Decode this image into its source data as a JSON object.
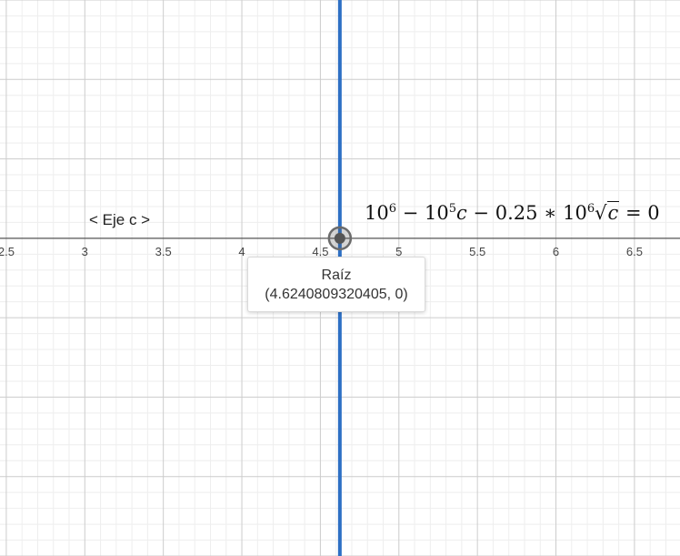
{
  "chart_data": {
    "type": "line",
    "xlim": [
      2.46,
      6.79
    ],
    "ylim": [
      -2.0,
      1.5
    ],
    "grid": true,
    "x_ticks": [
      "2.5",
      "3",
      "3.5",
      "4",
      "4.5",
      "5",
      "5.5",
      "6",
      "6.5"
    ],
    "x_tick_values": [
      2.5,
      3,
      3.5,
      4,
      4.5,
      5,
      5.5,
      6,
      6.5
    ],
    "axis_label": "< Eje c >",
    "equation": {
      "a": "10",
      "a_exp": "6",
      "b": "10",
      "b_exp": "5",
      "coef": "0.25",
      "c_exp": "6",
      "rhs": "0"
    },
    "root_line_x": 4.6240809320405,
    "root_point": {
      "x": 4.6240809320405,
      "y": 0
    },
    "line_color": "#2d6fc4",
    "point_color": "#555555"
  },
  "tooltip": {
    "title": "Raíz",
    "coords": "(4.6240809320405, 0)"
  }
}
